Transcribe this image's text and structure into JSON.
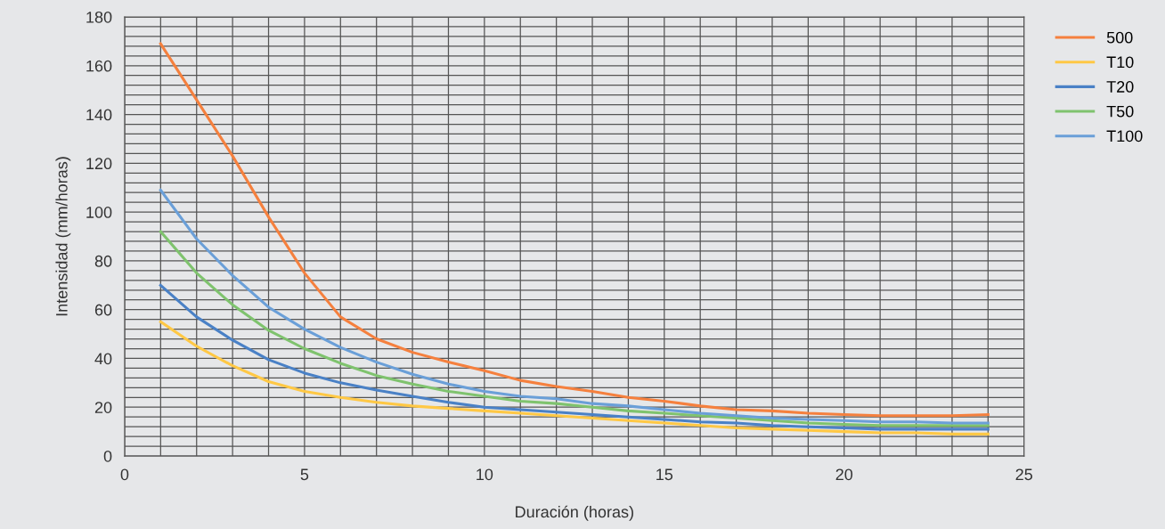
{
  "chart_data": {
    "type": "line",
    "xlabel": "Duración (horas)",
    "ylabel": "Intensidad (mm/horas)",
    "x": [
      1,
      2,
      3,
      4,
      5,
      6,
      7,
      8,
      9,
      10,
      11,
      12,
      13,
      14,
      15,
      16,
      17,
      18,
      19,
      20,
      21,
      22,
      23,
      24
    ],
    "series": [
      {
        "name": "500",
        "color": "#f5803e",
        "values": [
          169,
          146,
          123,
          98,
          75,
          57,
          48,
          42.5,
          38.5,
          35,
          31,
          28.5,
          26.5,
          24,
          22.5,
          20.5,
          19,
          18.5,
          17.5,
          17,
          16.5,
          16.5,
          16.5,
          17
        ]
      },
      {
        "name": "T10",
        "color": "#ffc845",
        "values": [
          55,
          45,
          37,
          30.5,
          26.5,
          24,
          22,
          20.5,
          19.5,
          18.5,
          17.5,
          16.5,
          15.5,
          14.5,
          13.5,
          12.5,
          11.5,
          11,
          10.5,
          10,
          9.5,
          9.5,
          9,
          9
        ]
      },
      {
        "name": "T20",
        "color": "#4a81c6",
        "values": [
          70,
          57,
          47.5,
          39.5,
          34,
          30,
          27,
          24.5,
          22,
          20,
          19,
          18,
          17,
          16,
          15,
          14,
          13.5,
          12.5,
          12,
          11.5,
          11,
          11,
          11,
          11
        ]
      },
      {
        "name": "T50",
        "color": "#7fc36e",
        "values": [
          92,
          75,
          62,
          51.5,
          44,
          38,
          33,
          29.5,
          26.5,
          24.5,
          22.5,
          21.5,
          20,
          18.5,
          17.5,
          16.5,
          15.5,
          14.5,
          13.5,
          13,
          12.5,
          12.5,
          12.5,
          12.5
        ]
      },
      {
        "name": "T100",
        "color": "#6a9fd8",
        "values": [
          109,
          89,
          74,
          61,
          52,
          44.5,
          38.5,
          33.5,
          29.5,
          26.5,
          24.5,
          23.5,
          21.5,
          20.5,
          19,
          17.5,
          16.5,
          15.5,
          15,
          14.5,
          14,
          14,
          13.5,
          13.5
        ]
      }
    ],
    "xlim": [
      0,
      25
    ],
    "ylim": [
      0,
      180
    ],
    "xticks": [
      0,
      {
        "value": 1,
        "label": null
      },
      {
        "value": 2,
        "label": null
      },
      {
        "value": 3,
        "label": null
      },
      {
        "value": 4,
        "label": null
      },
      5,
      {
        "value": 6,
        "label": null
      },
      {
        "value": 7,
        "label": null
      },
      {
        "value": 8,
        "label": null
      },
      {
        "value": 9,
        "label": null
      },
      10,
      {
        "value": 11,
        "label": null
      },
      {
        "value": 12,
        "label": null
      },
      {
        "value": 13,
        "label": null
      },
      {
        "value": 14,
        "label": null
      },
      15,
      {
        "value": 16,
        "label": null
      },
      {
        "value": 17,
        "label": null
      },
      {
        "value": 18,
        "label": null
      },
      {
        "value": 19,
        "label": null
      },
      20,
      {
        "value": 21,
        "label": null
      },
      {
        "value": 22,
        "label": null
      },
      {
        "value": 23,
        "label": null
      },
      {
        "value": 24,
        "label": null
      },
      25
    ],
    "yticks": [
      0,
      {
        "value": 4,
        "label": null
      },
      {
        "value": 8,
        "label": null
      },
      {
        "value": 12,
        "label": null
      },
      {
        "value": 16,
        "label": null
      },
      20,
      {
        "value": 24,
        "label": null
      },
      {
        "value": 28,
        "label": null
      },
      {
        "value": 32,
        "label": null
      },
      {
        "value": 36,
        "label": null
      },
      40,
      {
        "value": 44,
        "label": null
      },
      {
        "value": 48,
        "label": null
      },
      {
        "value": 52,
        "label": null
      },
      {
        "value": 56,
        "label": null
      },
      60,
      {
        "value": 64,
        "label": null
      },
      {
        "value": 68,
        "label": null
      },
      {
        "value": 72,
        "label": null
      },
      {
        "value": 76,
        "label": null
      },
      80,
      {
        "value": 84,
        "label": null
      },
      {
        "value": 88,
        "label": null
      },
      {
        "value": 92,
        "label": null
      },
      {
        "value": 96,
        "label": null
      },
      100,
      {
        "value": 104,
        "label": null
      },
      {
        "value": 108,
        "label": null
      },
      {
        "value": 112,
        "label": null
      },
      {
        "value": 116,
        "label": null
      },
      120,
      {
        "value": 124,
        "label": null
      },
      {
        "value": 128,
        "label": null
      },
      {
        "value": 132,
        "label": null
      },
      {
        "value": 136,
        "label": null
      },
      140,
      {
        "value": 144,
        "label": null
      },
      {
        "value": 148,
        "label": null
      },
      {
        "value": 152,
        "label": null
      },
      {
        "value": 156,
        "label": null
      },
      160,
      {
        "value": 164,
        "label": null
      },
      {
        "value": 168,
        "label": null
      },
      {
        "value": 172,
        "label": null
      },
      {
        "value": 176,
        "label": null
      },
      180
    ],
    "grid": true,
    "legend": "top right",
    "marker": "none",
    "line_style": "solid"
  }
}
